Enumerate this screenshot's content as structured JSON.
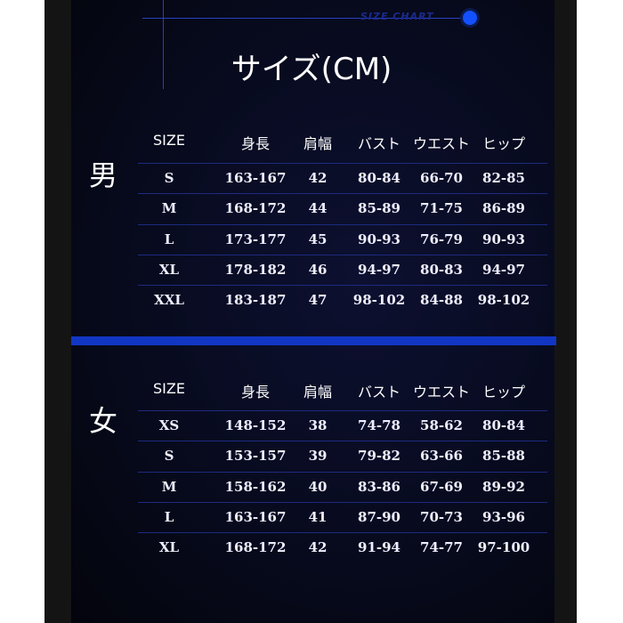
{
  "header": {
    "tag": "SIZE CHART",
    "title": "サイズ(CM)"
  },
  "columns": [
    "SIZE",
    "身長",
    "肩幅",
    "バスト",
    "ウエスト",
    "ヒップ"
  ],
  "accent_color": "#1236c4",
  "men": {
    "label": "男",
    "rows": [
      [
        "S",
        "163-167",
        "42",
        "80-84",
        "66-70",
        "82-85"
      ],
      [
        "M",
        "168-172",
        "44",
        "85-89",
        "71-75",
        "86-89"
      ],
      [
        "L",
        "173-177",
        "45",
        "90-93",
        "76-79",
        "90-93"
      ],
      [
        "XL",
        "178-182",
        "46",
        "94-97",
        "80-83",
        "94-97"
      ],
      [
        "XXL",
        "183-187",
        "47",
        "98-102",
        "84-88",
        "98-102"
      ]
    ]
  },
  "women": {
    "label": "女",
    "rows": [
      [
        "XS",
        "148-152",
        "38",
        "74-78",
        "58-62",
        "80-84"
      ],
      [
        "S",
        "153-157",
        "39",
        "79-82",
        "63-66",
        "85-88"
      ],
      [
        "M",
        "158-162",
        "40",
        "83-86",
        "67-69",
        "89-92"
      ],
      [
        "L",
        "163-167",
        "41",
        "87-90",
        "70-73",
        "93-96"
      ],
      [
        "XL",
        "168-172",
        "42",
        "91-94",
        "74-77",
        "97-100"
      ]
    ]
  }
}
